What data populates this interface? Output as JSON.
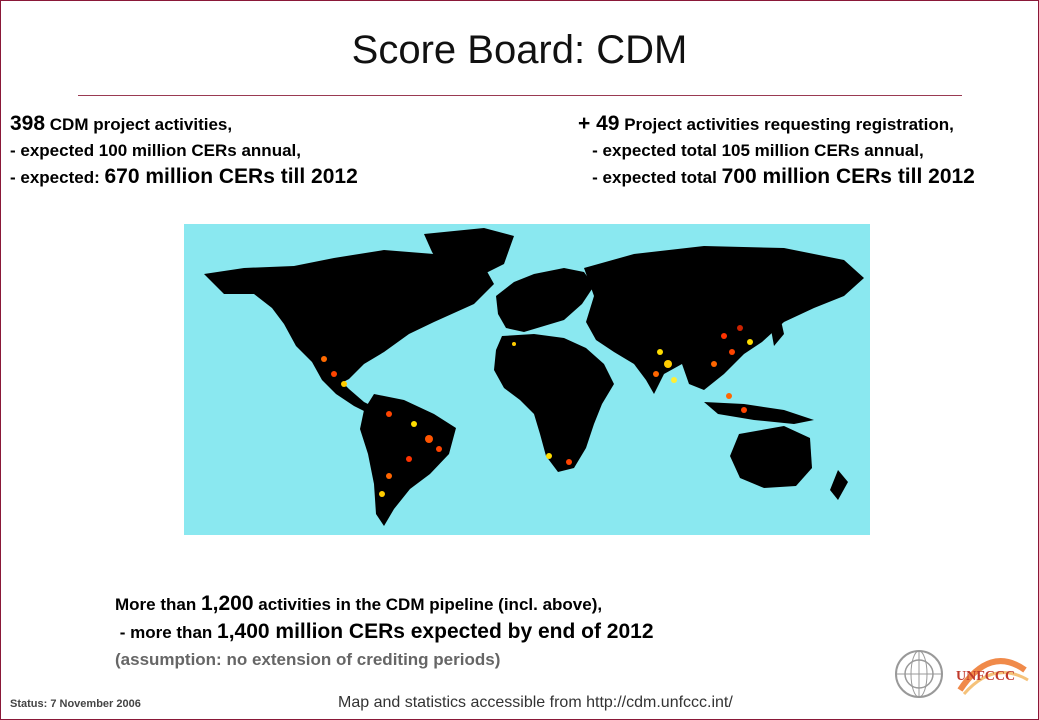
{
  "slide": {
    "title": "Score Board: CDM",
    "left_stats": {
      "line1_num": "398",
      "line1_text": " CDM project activities,",
      "line2": " - expected 100 million CERs annual,",
      "line3_prefix": " - expected: ",
      "line3_big": "670 million CERs till 2012"
    },
    "right_stats": {
      "line1_num": "+ 49",
      "line1_text": " Project activities requesting registration,",
      "line2": "   - expected total 105 million CERs annual,",
      "line3_prefix": "   - expected total ",
      "line3_big": "700 million CERs till 2012"
    },
    "pipeline": {
      "line1_prefix": "More than ",
      "line1_num": "1,200",
      "line1_text": " activities in the CDM pipeline (incl. above),",
      "line2_prefix": " - more than ",
      "line2_big": "1,400 million CERs expected by end of 2012",
      "note": "(assumption: no extension of crediting periods)"
    },
    "status": "Status: 7 November 2006",
    "source": "Map and statistics accessible from http://cdm.unfccc.int/",
    "logos": {
      "unfccc_text": "UNFCCC"
    },
    "colors": {
      "ocean": "#8ae8f0",
      "land": "#000000",
      "frame": "#8a1838"
    }
  }
}
